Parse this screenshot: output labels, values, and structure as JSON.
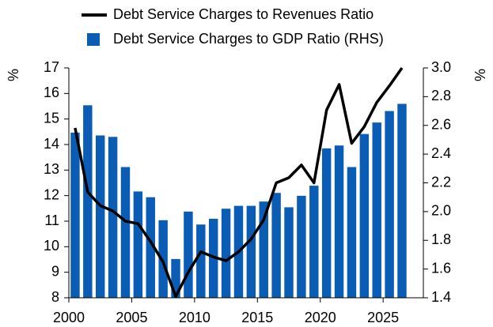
{
  "chart_data": {
    "type": "bar-line",
    "y_label": "%",
    "y2_label": "%",
    "x": [
      2000.5,
      2001.5,
      2002.5,
      2003.5,
      2004.5,
      2005.5,
      2006.5,
      2007.5,
      2008.5,
      2009.5,
      2010.5,
      2011.5,
      2012.5,
      2013.5,
      2014.5,
      2015.5,
      2016.5,
      2017.5,
      2018.5,
      2019.5,
      2020.5,
      2021.5,
      2022.5,
      2023.5,
      2024.5,
      2025.5,
      2026.5
    ],
    "xlim": [
      2000,
      2028.2
    ],
    "xticks": [
      2000,
      2005,
      2010,
      2015,
      2020,
      2025
    ],
    "ylim": [
      8,
      17
    ],
    "yticks": [
      8,
      9,
      10,
      11,
      12,
      13,
      14,
      15,
      16,
      17
    ],
    "y2lim": [
      1.4,
      3.0
    ],
    "y2ticks": [
      1.4,
      1.6,
      1.8,
      {
        "value": 2,
        "label": "2.0"
      },
      2.2,
      2.4,
      2.6,
      2.8,
      {
        "value": 3,
        "label": "3.0"
      }
    ],
    "series": [
      {
        "name": "Debt Service Charges to Revenues Ratio",
        "kind": "line",
        "color": "#000000",
        "values": [
          14.65,
          12.14,
          11.61,
          11.4,
          11.0,
          10.9,
          10.2,
          9.4,
          8.05,
          9.0,
          9.8,
          9.6,
          9.45,
          9.8,
          10.3,
          11.05,
          12.5,
          12.7,
          13.2,
          12.5,
          15.35,
          16.35,
          14.05,
          14.7,
          15.65,
          16.3,
          17.0
        ]
      },
      {
        "name": "Debt Service Charges to GDP Ratio (RHS)",
        "kind": "bar",
        "axis": "y2",
        "color": "#0a5cb4",
        "values": [
          2.55,
          2.74,
          2.53,
          2.52,
          2.31,
          2.14,
          2.1,
          1.94,
          1.67,
          2.0,
          1.91,
          1.95,
          2.02,
          2.04,
          2.04,
          2.07,
          2.13,
          2.03,
          2.11,
          2.18,
          2.44,
          2.46,
          2.31,
          2.54,
          2.62,
          2.7,
          2.75
        ]
      }
    ]
  }
}
